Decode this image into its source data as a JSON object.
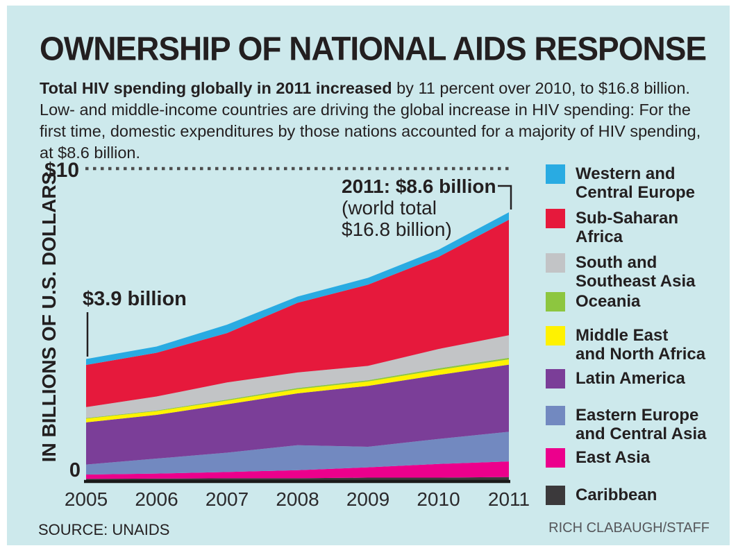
{
  "colors": {
    "panel_bg": "#cde9ec",
    "text": "#231f20",
    "axis": "#1a1a1a",
    "dotted_line": "#4c4c4c",
    "annotation_line": "#231f20"
  },
  "header": {
    "title": "OWNERSHIP OF NATIONAL AIDS RESPONSE"
  },
  "intro": {
    "bold": "Total HIV spending globally in 2011 increased",
    "rest": " by 11 percent over 2010, to $16.8 billion. Low- and middle-income countries are driving the global increase in HIV spending: For the first time, domestic expenditures by those nations accounted for a majority of HIV spending, at $8.6 billion."
  },
  "chart": {
    "y_reference_label": "$10",
    "y_zero_label": "0"
  },
  "annotations": {
    "start": {
      "label": "$3.9 billion"
    },
    "end": {
      "line1": "2011: $8.6 billion",
      "line2": "(world total",
      "line3": "$16.8 billion)"
    }
  },
  "chart_data": {
    "type": "area",
    "stacked": true,
    "title": "Total annual HIV spending by region, in billions of U.S. dollars",
    "x": [
      2005,
      2006,
      2007,
      2008,
      2009,
      2010,
      2011
    ],
    "xlabel": "",
    "ylabel": "IN BILLIONS OF U.S. DOLLARS",
    "ylim": [
      0,
      10
    ],
    "reference_line_y": 10,
    "grid": false,
    "legend_position": "right",
    "totals": [
      3.9,
      4.3,
      5.0,
      5.9,
      6.5,
      7.4,
      8.6
    ],
    "series": [
      {
        "name": "Caribbean",
        "color": "#3b393b",
        "values": [
          0.06,
          0.07,
          0.08,
          0.08,
          0.1,
          0.1,
          0.12
        ]
      },
      {
        "name": "East Asia",
        "color": "#ec008c",
        "values": [
          0.14,
          0.16,
          0.2,
          0.26,
          0.33,
          0.44,
          0.5
        ]
      },
      {
        "name": "Eastern Europe and Central Asia",
        "color": "#7289c0",
        "values": [
          0.32,
          0.48,
          0.62,
          0.8,
          0.66,
          0.8,
          0.95
        ]
      },
      {
        "name": "Latin America",
        "color": "#7b3e98",
        "values": [
          1.35,
          1.4,
          1.55,
          1.66,
          1.95,
          2.05,
          2.15
        ]
      },
      {
        "name": "Middle East and North Africa",
        "color": "#fff200",
        "values": [
          0.12,
          0.12,
          0.12,
          0.13,
          0.14,
          0.16,
          0.17
        ]
      },
      {
        "name": "Oceania",
        "color": "#8dc63f",
        "values": [
          0.02,
          0.02,
          0.03,
          0.04,
          0.04,
          0.05,
          0.05
        ]
      },
      {
        "name": "South and Southeast Asia",
        "color": "#c2c4c6",
        "values": [
          0.35,
          0.45,
          0.55,
          0.5,
          0.46,
          0.62,
          0.72
        ]
      },
      {
        "name": "Sub-Saharan Africa",
        "color": "#e6193c",
        "values": [
          1.35,
          1.4,
          1.58,
          2.23,
          2.6,
          2.95,
          3.7
        ]
      },
      {
        "name": "Western and Central Europe",
        "color": "#29abe2",
        "values": [
          0.19,
          0.2,
          0.27,
          0.2,
          0.22,
          0.23,
          0.24
        ]
      }
    ]
  },
  "legend": {
    "items": [
      {
        "lines": [
          "Western and",
          "Central Europe"
        ],
        "color": "#29abe2"
      },
      {
        "lines": [
          "Sub-Saharan",
          "Africa"
        ],
        "color": "#e6193c"
      },
      {
        "lines": [
          "South and",
          "Southeast Asia"
        ],
        "color": "#c2c4c6"
      },
      {
        "lines": [
          "Oceania"
        ],
        "color": "#8dc63f"
      },
      {
        "lines": [
          "Middle East",
          "and North Africa"
        ],
        "color": "#fff200"
      },
      {
        "lines": [
          "Latin America"
        ],
        "color": "#7b3e98"
      },
      {
        "lines": [
          "Eastern Europe",
          "and Central Asia"
        ],
        "color": "#7289c0"
      },
      {
        "lines": [
          "East Asia"
        ],
        "color": "#ec008c"
      },
      {
        "lines": [
          "Caribbean"
        ],
        "color": "#3b393b"
      }
    ]
  },
  "footer": {
    "source": "SOURCE: UNAIDS",
    "credit": "RICH CLABAUGH/STAFF"
  }
}
